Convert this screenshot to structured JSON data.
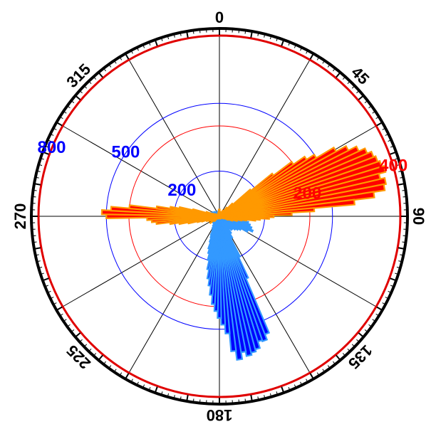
{
  "chart_data": {
    "type": "polar-bar",
    "theta_direction": "clockwise",
    "theta_zero": "top",
    "angle_labels": [
      "0",
      "45",
      "90",
      "135",
      "180",
      "225",
      "270",
      "315"
    ],
    "series": [
      {
        "color": "#0000ff",
        "edge_color": "#3399ff",
        "r_ticks": [
          200,
          500,
          800
        ],
        "r_max": 800,
        "bars": [
          [
            158,
            560
          ],
          [
            160,
            585
          ],
          [
            162,
            580
          ],
          [
            164,
            610
          ],
          [
            166,
            620
          ],
          [
            168,
            630
          ],
          [
            170,
            610
          ],
          [
            172,
            640
          ],
          [
            174,
            600
          ],
          [
            176,
            520
          ],
          [
            178,
            480
          ],
          [
            180,
            450
          ],
          [
            182,
            420
          ],
          [
            184,
            390
          ],
          [
            186,
            350
          ],
          [
            188,
            310
          ],
          [
            190,
            280
          ],
          [
            192,
            240
          ],
          [
            194,
            200
          ],
          [
            196,
            170
          ],
          [
            198,
            150
          ],
          [
            200,
            120
          ],
          [
            202,
            100
          ],
          [
            204,
            90
          ],
          [
            206,
            70
          ],
          [
            210,
            60
          ],
          [
            214,
            50
          ],
          [
            220,
            40
          ],
          [
            230,
            40
          ],
          [
            240,
            30
          ],
          [
            250,
            20
          ],
          [
            260,
            20
          ],
          [
            270,
            25
          ],
          [
            280,
            30
          ],
          [
            290,
            40
          ],
          [
            300,
            35
          ],
          [
            310,
            30
          ],
          [
            320,
            25
          ],
          [
            330,
            20
          ],
          [
            340,
            20
          ],
          [
            350,
            25
          ],
          [
            356,
            20
          ],
          [
            0,
            15
          ],
          [
            4,
            20
          ],
          [
            10,
            15
          ],
          [
            20,
            10
          ],
          [
            30,
            10
          ],
          [
            40,
            20
          ],
          [
            50,
            25
          ],
          [
            60,
            30
          ],
          [
            70,
            40
          ],
          [
            80,
            50
          ],
          [
            90,
            70
          ],
          [
            94,
            90
          ],
          [
            98,
            120
          ],
          [
            102,
            130
          ],
          [
            106,
            140
          ],
          [
            110,
            150
          ],
          [
            114,
            160
          ],
          [
            118,
            140
          ],
          [
            122,
            110
          ],
          [
            126,
            100
          ],
          [
            130,
            90
          ],
          [
            134,
            80
          ],
          [
            138,
            80
          ],
          [
            142,
            70
          ],
          [
            146,
            90
          ],
          [
            150,
            110
          ],
          [
            154,
            200
          ],
          [
            156,
            300
          ]
        ]
      },
      {
        "color": "#ff0000",
        "edge_color": "#ff9900",
        "r_ticks": [
          200,
          400
        ],
        "r_max": 400,
        "bars": [
          [
            58,
            250
          ],
          [
            60,
            295
          ],
          [
            62,
            320
          ],
          [
            64,
            340
          ],
          [
            66,
            355
          ],
          [
            68,
            365
          ],
          [
            70,
            370
          ],
          [
            72,
            375
          ],
          [
            74,
            380
          ],
          [
            76,
            365
          ],
          [
            78,
            375
          ],
          [
            80,
            370
          ],
          [
            82,
            345
          ],
          [
            84,
            300
          ],
          [
            86,
            210
          ],
          [
            88,
            160
          ],
          [
            90,
            120
          ],
          [
            92,
            110
          ],
          [
            94,
            90
          ],
          [
            96,
            80
          ],
          [
            98,
            60
          ],
          [
            100,
            50
          ],
          [
            104,
            40
          ],
          [
            108,
            30
          ],
          [
            112,
            20
          ],
          [
            120,
            10
          ],
          [
            150,
            6
          ],
          [
            180,
            5
          ],
          [
            210,
            6
          ],
          [
            226,
            15
          ],
          [
            234,
            25
          ],
          [
            240,
            20
          ],
          [
            246,
            25
          ],
          [
            250,
            30
          ],
          [
            254,
            40
          ],
          [
            256,
            50
          ],
          [
            258,
            70
          ],
          [
            260,
            90
          ],
          [
            262,
            110
          ],
          [
            264,
            140
          ],
          [
            266,
            150
          ],
          [
            268,
            160
          ],
          [
            270,
            250
          ],
          [
            272,
            260
          ],
          [
            274,
            240
          ],
          [
            276,
            200
          ],
          [
            278,
            140
          ],
          [
            280,
            110
          ],
          [
            282,
            90
          ],
          [
            284,
            60
          ],
          [
            288,
            30
          ],
          [
            292,
            15
          ],
          [
            300,
            10
          ],
          [
            320,
            6
          ],
          [
            340,
            8
          ],
          [
            350,
            10
          ],
          [
            356,
            15
          ],
          [
            2,
            15
          ],
          [
            8,
            10
          ],
          [
            20,
            10
          ],
          [
            30,
            15
          ],
          [
            40,
            25
          ],
          [
            46,
            40
          ],
          [
            50,
            90
          ],
          [
            52,
            150
          ],
          [
            54,
            200
          ],
          [
            56,
            230
          ]
        ]
      }
    ]
  }
}
